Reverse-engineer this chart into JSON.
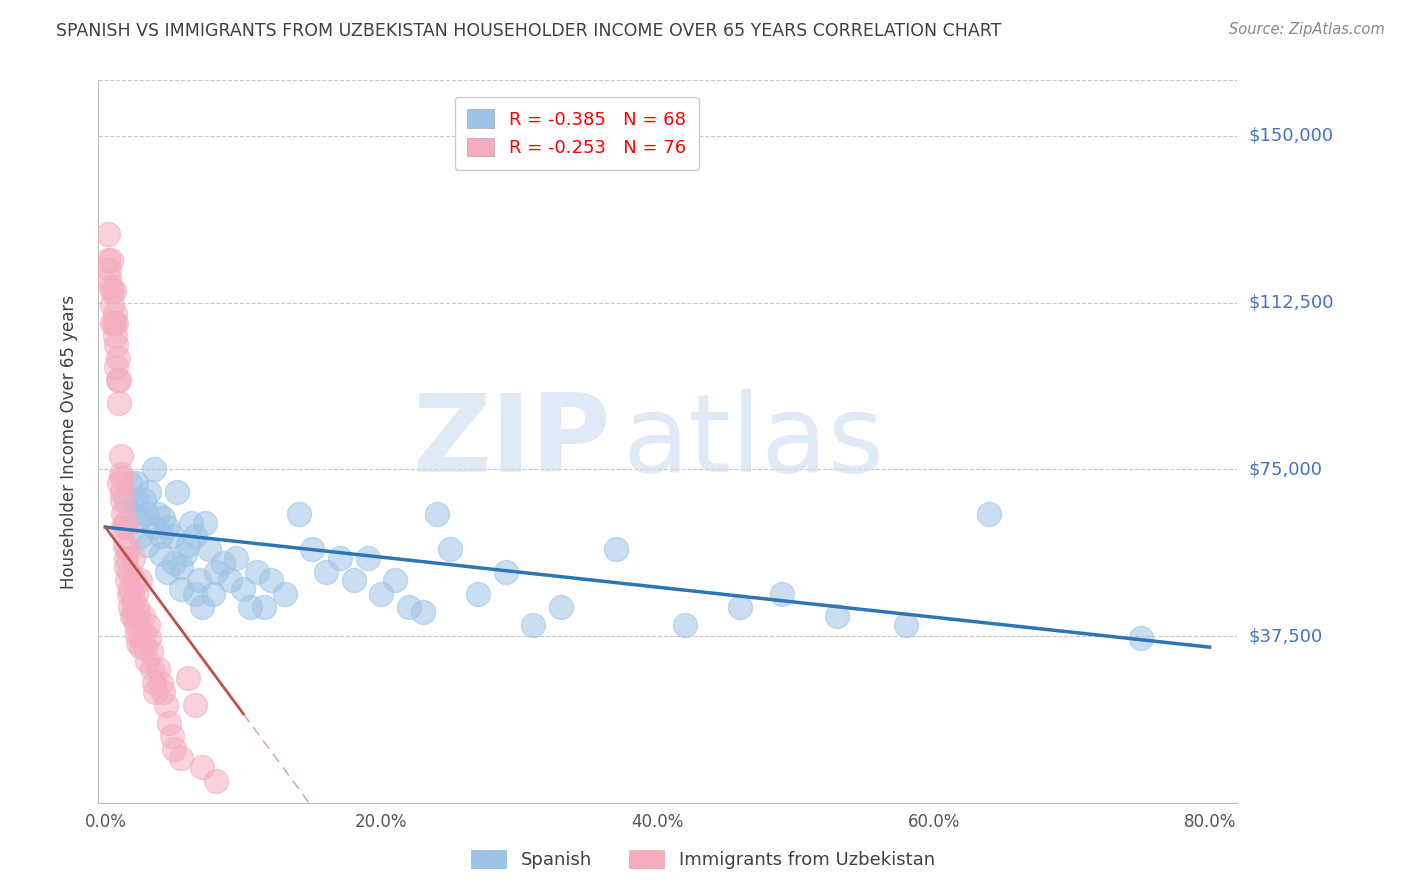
{
  "title": "SPANISH VS IMMIGRANTS FROM UZBEKISTAN HOUSEHOLDER INCOME OVER 65 YEARS CORRELATION CHART",
  "source": "Source: ZipAtlas.com",
  "ylabel": "Householder Income Over 65 years",
  "xlabel_ticks": [
    "0.0%",
    "20.0%",
    "40.0%",
    "60.0%",
    "80.0%"
  ],
  "xlabel_vals": [
    0.0,
    0.2,
    0.4,
    0.6,
    0.8
  ],
  "ylim": [
    0,
    162500
  ],
  "xlim": [
    -0.005,
    0.82
  ],
  "yticks": [
    0,
    37500,
    75000,
    112500,
    150000
  ],
  "ytick_labels": [
    "",
    "$37,500",
    "$75,000",
    "$112,500",
    "$150,000"
  ],
  "watermark_zip": "ZIP",
  "watermark_atlas": "atlas",
  "legend_blue_r": "R = -0.385",
  "legend_blue_n": "N = 68",
  "legend_pink_r": "R = -0.253",
  "legend_pink_n": "N = 76",
  "legend_label_blue": "Spanish",
  "legend_label_pink": "Immigrants from Uzbekistan",
  "blue_color": "#9dc3e6",
  "pink_color": "#f4acbe",
  "trend_blue_color": "#2e75b6",
  "trend_pink_color": "#c0504d",
  "blue_scatter_x": [
    0.015,
    0.018,
    0.02,
    0.022,
    0.022,
    0.025,
    0.025,
    0.028,
    0.03,
    0.03,
    0.032,
    0.035,
    0.035,
    0.038,
    0.04,
    0.04,
    0.042,
    0.045,
    0.045,
    0.048,
    0.05,
    0.052,
    0.055,
    0.055,
    0.058,
    0.06,
    0.062,
    0.065,
    0.065,
    0.068,
    0.07,
    0.072,
    0.075,
    0.078,
    0.08,
    0.085,
    0.09,
    0.095,
    0.1,
    0.105,
    0.11,
    0.115,
    0.12,
    0.13,
    0.14,
    0.15,
    0.16,
    0.17,
    0.18,
    0.19,
    0.2,
    0.21,
    0.22,
    0.23,
    0.24,
    0.25,
    0.27,
    0.29,
    0.31,
    0.33,
    0.37,
    0.42,
    0.46,
    0.49,
    0.53,
    0.58,
    0.64,
    0.75
  ],
  "blue_scatter_y": [
    68000,
    72000,
    65000,
    68000,
    72000,
    64000,
    60000,
    68000,
    58000,
    65000,
    70000,
    75000,
    62000,
    65000,
    60000,
    56000,
    64000,
    62000,
    52000,
    60000,
    54000,
    70000,
    53000,
    48000,
    56000,
    58000,
    63000,
    47000,
    60000,
    50000,
    44000,
    63000,
    57000,
    47000,
    52000,
    54000,
    50000,
    55000,
    48000,
    44000,
    52000,
    44000,
    50000,
    47000,
    65000,
    57000,
    52000,
    55000,
    50000,
    55000,
    47000,
    50000,
    44000,
    43000,
    65000,
    57000,
    47000,
    52000,
    40000,
    44000,
    57000,
    40000,
    44000,
    47000,
    42000,
    40000,
    65000,
    37000
  ],
  "pink_scatter_x": [
    0.002,
    0.002,
    0.003,
    0.003,
    0.004,
    0.004,
    0.005,
    0.005,
    0.005,
    0.006,
    0.006,
    0.007,
    0.007,
    0.008,
    0.008,
    0.008,
    0.009,
    0.009,
    0.01,
    0.01,
    0.01,
    0.011,
    0.011,
    0.012,
    0.012,
    0.012,
    0.013,
    0.013,
    0.014,
    0.014,
    0.015,
    0.015,
    0.015,
    0.016,
    0.016,
    0.017,
    0.017,
    0.018,
    0.018,
    0.019,
    0.019,
    0.02,
    0.02,
    0.021,
    0.021,
    0.022,
    0.022,
    0.023,
    0.023,
    0.024,
    0.024,
    0.025,
    0.025,
    0.026,
    0.027,
    0.028,
    0.029,
    0.03,
    0.031,
    0.032,
    0.033,
    0.034,
    0.035,
    0.036,
    0.038,
    0.04,
    0.042,
    0.044,
    0.046,
    0.048,
    0.05,
    0.055,
    0.06,
    0.065,
    0.07,
    0.08
  ],
  "pink_scatter_y": [
    128000,
    122000,
    120000,
    118000,
    116000,
    122000,
    108000,
    112000,
    115000,
    108000,
    115000,
    105000,
    110000,
    98000,
    103000,
    108000,
    95000,
    100000,
    90000,
    95000,
    72000,
    78000,
    74000,
    70000,
    68000,
    73000,
    65000,
    62000,
    63000,
    58000,
    55000,
    53000,
    62000,
    50000,
    57000,
    47000,
    52000,
    48000,
    44000,
    42000,
    47000,
    45000,
    55000,
    42000,
    50000,
    40000,
    47000,
    38000,
    44000,
    36000,
    42000,
    38000,
    50000,
    35000,
    42000,
    38000,
    35000,
    32000,
    40000,
    37000,
    34000,
    30000,
    27000,
    25000,
    30000,
    27000,
    25000,
    22000,
    18000,
    15000,
    12000,
    10000,
    28000,
    22000,
    8000,
    5000
  ],
  "background_color": "#ffffff",
  "grid_color": "#c8c8c8",
  "title_color": "#404040",
  "right_label_color": "#4472c4",
  "legend_r_color": "#ff0000",
  "legend_n_color": "#0070c0",
  "bottom_label_color": "#404040"
}
